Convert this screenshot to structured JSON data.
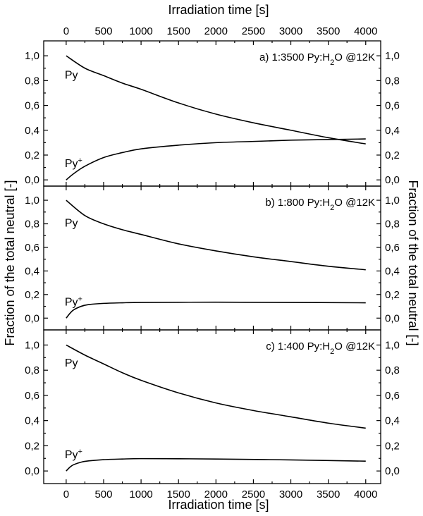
{
  "chart_data": {
    "type": "line",
    "x_axis": {
      "label": "Irradiation time [s]",
      "range": [
        -300,
        4200
      ],
      "ticks": [
        0,
        500,
        1000,
        1500,
        2000,
        2500,
        3000,
        3500,
        4000
      ],
      "tick_labels": [
        "0",
        "500",
        "1000",
        "1500",
        "2000",
        "2500",
        "3000",
        "3500",
        "4000"
      ],
      "shown_top_and_bottom": true
    },
    "y_axis": {
      "label": "Fraction of the total neutral [-]",
      "shown_left_and_right": true
    },
    "panels": [
      {
        "id": "a",
        "label_prefix": "a) 1:3500 Py:H",
        "label_sub": "2",
        "label_suffix": "O @12K",
        "ylim": [
          -0.05,
          1.12
        ],
        "yticks": [
          0.0,
          0.2,
          0.4,
          0.6,
          0.8,
          1.0
        ],
        "ytick_labels": [
          "0,0",
          "0,2",
          "0,4",
          "0,6",
          "0,8",
          "1,0"
        ],
        "series": [
          {
            "name": "Py",
            "x": [
              0,
              250,
              500,
              750,
              1000,
              1500,
              2000,
              2500,
              3000,
              3500,
              4000
            ],
            "y": [
              1.0,
              0.9,
              0.84,
              0.78,
              0.73,
              0.62,
              0.53,
              0.46,
              0.4,
              0.34,
              0.29
            ]
          },
          {
            "name": "Py+",
            "x": [
              0,
              100,
              250,
              500,
              750,
              1000,
              1500,
              2000,
              2500,
              3000,
              3500,
              4000
            ],
            "y": [
              0.0,
              0.05,
              0.11,
              0.18,
              0.22,
              0.25,
              0.28,
              0.3,
              0.31,
              0.32,
              0.325,
              0.33
            ]
          }
        ]
      },
      {
        "id": "b",
        "label_prefix": "b) 1:800 Py:H",
        "label_sub": "2",
        "label_suffix": "O @12K",
        "ylim": [
          -0.1,
          1.12
        ],
        "yticks": [
          0.0,
          0.2,
          0.4,
          0.6,
          0.8,
          1.0
        ],
        "ytick_labels": [
          "0,0",
          "0,2",
          "0,4",
          "0,6",
          "0,8",
          "1,0"
        ],
        "series": [
          {
            "name": "Py",
            "x": [
              0,
              250,
              500,
              750,
              1000,
              1500,
              2000,
              2500,
              3000,
              3500,
              4000
            ],
            "y": [
              1.0,
              0.87,
              0.8,
              0.75,
              0.71,
              0.63,
              0.57,
              0.52,
              0.48,
              0.44,
              0.41
            ]
          },
          {
            "name": "Py+",
            "x": [
              0,
              50,
              100,
              200,
              300,
              500,
              750,
              1000,
              2000,
              3000,
              4000
            ],
            "y": [
              0.0,
              0.04,
              0.07,
              0.1,
              0.115,
              0.125,
              0.13,
              0.133,
              0.135,
              0.133,
              0.13
            ]
          }
        ]
      },
      {
        "id": "c",
        "label_prefix": "c) 1:400 Py:H",
        "label_sub": "2",
        "label_suffix": "O @12K",
        "ylim": [
          -0.1,
          1.12
        ],
        "yticks": [
          0.0,
          0.2,
          0.4,
          0.6,
          0.8,
          1.0
        ],
        "ytick_labels": [
          "0,0",
          "0,2",
          "0,4",
          "0,6",
          "0,8",
          "1,0"
        ],
        "series": [
          {
            "name": "Py",
            "x": [
              0,
              250,
              500,
              750,
              1000,
              1500,
              2000,
              2500,
              3000,
              3500,
              4000
            ],
            "y": [
              1.0,
              0.92,
              0.85,
              0.78,
              0.72,
              0.62,
              0.54,
              0.48,
              0.43,
              0.38,
              0.34
            ]
          },
          {
            "name": "Py+",
            "x": [
              0,
              50,
              100,
              200,
              300,
              500,
              750,
              1000,
              1500,
              2000,
              3000,
              4000
            ],
            "y": [
              0.0,
              0.03,
              0.05,
              0.07,
              0.08,
              0.09,
              0.095,
              0.098,
              0.097,
              0.095,
              0.088,
              0.078
            ]
          }
        ]
      }
    ],
    "series_labels": {
      "py": "Py",
      "pyplus_base": "Py",
      "pyplus_sup": "+"
    },
    "grid": false,
    "legend": "none"
  }
}
